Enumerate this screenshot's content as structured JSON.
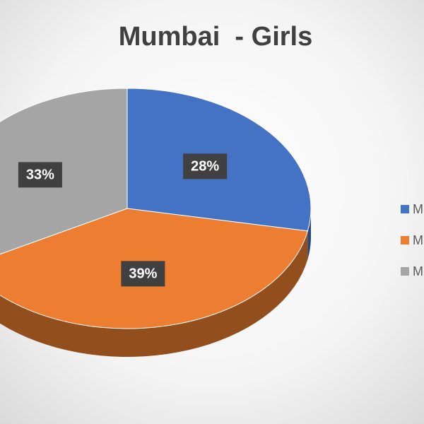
{
  "chart_data": {
    "type": "pie",
    "title": "Mumbai  - Girls",
    "categories": [
      "M",
      "M",
      "M"
    ],
    "values": [
      28,
      39,
      33
    ],
    "value_labels": [
      "28%",
      "39%",
      "33%"
    ],
    "colors": [
      "#4472c4",
      "#ed7d31",
      "#a5a5a5"
    ]
  }
}
